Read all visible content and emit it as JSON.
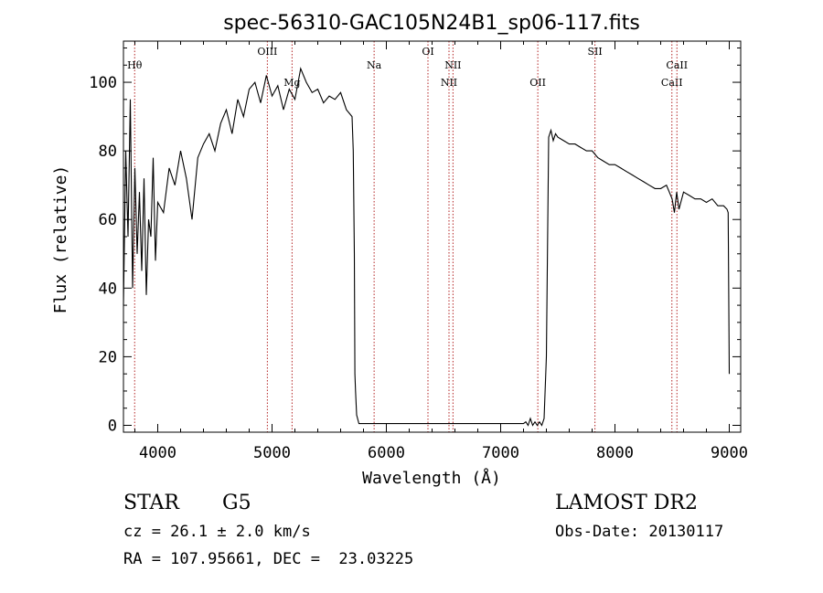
{
  "chart_data": {
    "type": "line",
    "title": "spec-56310-GAC105N24B1_sp06-117.fits",
    "xlabel": "Wavelength (Å)",
    "ylabel": "Flux (relative)",
    "xlim": [
      3700,
      9100
    ],
    "ylim": [
      -2,
      112
    ],
    "xticks": [
      4000,
      5000,
      6000,
      7000,
      8000,
      9000
    ],
    "yticks": [
      0,
      20,
      40,
      60,
      80,
      100
    ],
    "grid": false,
    "spectrum_color": "#000000",
    "line_marker_color": "#b22222",
    "series": [
      {
        "x": [
          3700,
          3720,
          3740,
          3760,
          3780,
          3800,
          3820,
          3840,
          3860,
          3880,
          3900,
          3920,
          3940,
          3960,
          3980,
          4000,
          4050,
          4100,
          4150,
          4200,
          4250,
          4300,
          4350,
          4400,
          4450,
          4500,
          4550,
          4600,
          4650,
          4700,
          4750,
          4800,
          4850,
          4900,
          4950,
          5000,
          5050,
          5100,
          5150,
          5200,
          5250,
          5300,
          5350,
          5400,
          5450,
          5500,
          5550,
          5600,
          5650,
          5700,
          5710,
          5720,
          5725,
          5730,
          5740,
          5760,
          7200,
          7220,
          7240,
          7260,
          7280,
          7300,
          7320,
          7340,
          7360,
          7380,
          7400,
          7420,
          7440,
          7460,
          7480,
          7500,
          7550,
          7600,
          7650,
          7700,
          7750,
          7800,
          7850,
          7900,
          7950,
          8000,
          8050,
          8100,
          8150,
          8200,
          8250,
          8300,
          8350,
          8400,
          8450,
          8500,
          8520,
          8540,
          8560,
          8600,
          8650,
          8700,
          8750,
          8800,
          8850,
          8900,
          8950,
          8980,
          8990,
          9000
        ],
        "y": [
          35,
          80,
          55,
          95,
          40,
          75,
          50,
          68,
          45,
          72,
          38,
          60,
          55,
          78,
          48,
          65,
          62,
          75,
          70,
          80,
          72,
          60,
          78,
          82,
          85,
          80,
          88,
          92,
          85,
          95,
          90,
          98,
          100,
          94,
          102,
          96,
          99,
          92,
          98,
          95,
          104,
          100,
          97,
          98,
          94,
          96,
          95,
          97,
          92,
          90,
          80,
          50,
          15,
          10,
          3,
          0.5,
          0.5,
          1,
          0,
          2,
          0,
          1,
          0,
          1,
          0,
          2,
          20,
          84,
          86,
          83,
          85,
          84,
          83,
          82,
          82,
          81,
          80,
          80,
          78,
          77,
          76,
          76,
          75,
          74,
          73,
          72,
          71,
          70,
          69,
          69,
          70,
          66,
          62,
          68,
          63,
          68,
          67,
          66,
          66,
          65,
          66,
          64,
          64,
          63,
          62,
          15
        ]
      }
    ],
    "line_markers": [
      {
        "label": "Hθ",
        "x": 3798,
        "label_y": 104
      },
      {
        "label": "OIII",
        "x": 4959,
        "label_y": 108
      },
      {
        "label": "Mg",
        "x": 5175,
        "label_y": 99
      },
      {
        "label": "Na",
        "x": 5893,
        "label_y": 104
      },
      {
        "label": "OI",
        "x": 6364,
        "label_y": 108
      },
      {
        "label": "NII",
        "x": 6548,
        "label_y": 99
      },
      {
        "label": "NII",
        "x": 6583,
        "label_y": 104
      },
      {
        "label": "OII",
        "x": 7325,
        "label_y": 99
      },
      {
        "label": "SII",
        "x": 7825,
        "label_y": 108
      },
      {
        "label": "CaII",
        "x": 8498,
        "label_y": 99
      },
      {
        "label": "CaII",
        "x": 8542,
        "label_y": 104
      }
    ]
  },
  "info": {
    "object_class": "STAR",
    "subclass": "G5",
    "survey": "LAMOST DR2",
    "redshift": "cz = 26.1 ± 2.0 km/s",
    "obs_date": "Obs-Date: 20130117",
    "coords": "RA = 107.95661, DEC =  23.03225"
  }
}
